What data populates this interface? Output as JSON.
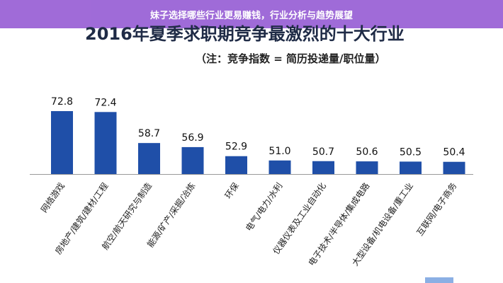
{
  "banner": {
    "text": "妹子选择哪些行业更易赚钱，行业分析与趋势展望"
  },
  "colors": {
    "bar": "#1f4fa8",
    "banner": "#9a62d6"
  },
  "chart_data": {
    "type": "bar",
    "title": "2016年夏季求职期竞争最激烈的十大行业",
    "subtitle": "（注：竞争指数 = 简历投递量/职位量）",
    "categories": [
      "网络游戏",
      "房地产/建筑/建材/工程",
      "航空/航天研究与制造",
      "能源/矿产/采掘/冶炼",
      "环保",
      "电气/电力/水利",
      "仪器仪表及工业自动化",
      "电子技术/半导体/集成电路",
      "大型设备/机电设备/重工业",
      "互联网/电子商务"
    ],
    "values": [
      72.8,
      72.4,
      58.7,
      56.9,
      52.9,
      51.0,
      50.7,
      50.6,
      50.5,
      50.4
    ],
    "value_labels": [
      "72.8",
      "72.4",
      "58.7",
      "56.9",
      "52.9",
      "51.0",
      "50.7",
      "50.6",
      "50.5",
      "50.4"
    ],
    "xlabel": "",
    "ylabel": "",
    "ylim": [
      45,
      75
    ],
    "grid": false,
    "legend": "none"
  }
}
